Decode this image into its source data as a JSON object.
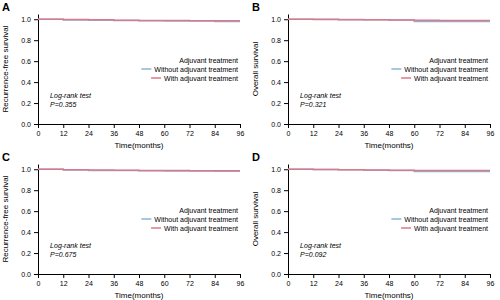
{
  "chart_data": [
    {
      "type": "step",
      "title": "A",
      "x_label": "Time(months)",
      "y_label": "Recurrence-free survival",
      "annotations": [
        "Log-rank test",
        "P=0.355"
      ],
      "legend": "right",
      "legend_title": "Adjuvant treatment",
      "grid": false,
      "x": [
        0,
        8,
        12,
        24,
        36,
        48,
        60,
        72,
        84,
        96
      ],
      "series": [
        {
          "name": "Without adjuvant treatment",
          "color": "#8ab4d4",
          "values": [
            1.0,
            1.0,
            0.993,
            0.991,
            0.988,
            0.986,
            0.984,
            0.982,
            0.979,
            0.978
          ]
        },
        {
          "name": "With adjuvant treatment",
          "color": "#d97a8a",
          "values": [
            1.0,
            1.0,
            0.997,
            0.994,
            0.991,
            0.989,
            0.987,
            0.986,
            0.985,
            0.984
          ]
        }
      ],
      "xlim": [
        0,
        96
      ],
      "xticks": [
        0,
        12,
        24,
        36,
        48,
        60,
        72,
        84,
        96
      ],
      "ylim": [
        0.0,
        1.05
      ],
      "yticks": [
        {
          "value": 0.0,
          "label": "0.0"
        },
        0.2,
        0.4,
        0.6,
        0.8,
        {
          "value": 1.0,
          "label": "1.0"
        }
      ]
    },
    {
      "type": "step",
      "title": "B",
      "x_label": "Time(months)",
      "y_label": "Overall survival",
      "annotations": [
        "Log-rank test",
        "P=0.321"
      ],
      "legend": "right",
      "legend_title": "Adjuvant treatment",
      "grid": false,
      "x": [
        0,
        8,
        12,
        24,
        36,
        48,
        60,
        72,
        84,
        96
      ],
      "series": [
        {
          "name": "Without adjuvant treatment",
          "color": "#8ab4d4",
          "values": [
            1.0,
            1.0,
            1.0,
            0.998,
            0.995,
            0.993,
            0.979,
            0.979,
            0.979,
            0.979
          ]
        },
        {
          "name": "With adjuvant treatment",
          "color": "#d97a8a",
          "values": [
            1.0,
            1.0,
            0.998,
            0.996,
            0.994,
            0.992,
            0.99,
            0.989,
            0.988,
            0.988
          ]
        }
      ],
      "xlim": [
        0,
        96
      ],
      "xticks": [
        0,
        12,
        24,
        36,
        48,
        60,
        72,
        84,
        96
      ],
      "ylim": [
        0.0,
        1.05
      ],
      "yticks": [
        {
          "value": 0.0,
          "label": "0.0"
        },
        0.2,
        0.4,
        0.6,
        0.8,
        {
          "value": 1.0,
          "label": "1.0"
        }
      ]
    },
    {
      "type": "step",
      "title": "C",
      "x_label": "Time(months)",
      "y_label": "Recurrence-free survival",
      "annotations": [
        "Log-rank test",
        "P=0.675"
      ],
      "legend": "right",
      "legend_title": "Adjuvant treatment",
      "grid": false,
      "x": [
        0,
        8,
        12,
        24,
        36,
        48,
        60,
        72,
        84,
        96
      ],
      "series": [
        {
          "name": "Without adjuvant treatment",
          "color": "#8ab4d4",
          "values": [
            1.0,
            1.0,
            0.992,
            0.989,
            0.987,
            0.985,
            0.984,
            0.982,
            0.981,
            0.98
          ]
        },
        {
          "name": "With adjuvant treatment",
          "color": "#d97a8a",
          "values": [
            1.0,
            1.0,
            0.996,
            0.993,
            0.991,
            0.989,
            0.988,
            0.986,
            0.986,
            0.986
          ]
        }
      ],
      "xlim": [
        0,
        96
      ],
      "xticks": [
        0,
        12,
        24,
        36,
        48,
        60,
        72,
        84,
        96
      ],
      "ylim": [
        0.0,
        1.05
      ],
      "yticks": [
        {
          "value": 0.0,
          "label": "0.0"
        },
        0.2,
        0.4,
        0.6,
        0.8,
        {
          "value": 1.0,
          "label": "1.0"
        }
      ]
    },
    {
      "type": "step",
      "title": "D",
      "x_label": "Time(months)",
      "y_label": "Overall survival",
      "annotations": [
        "Log-rank test",
        "P=0.092"
      ],
      "legend": "right",
      "legend_title": "Adjuvant treatment",
      "grid": false,
      "x": [
        0,
        8,
        12,
        24,
        36,
        48,
        60,
        72,
        84,
        96
      ],
      "series": [
        {
          "name": "Without adjuvant treatment",
          "color": "#8ab4d4",
          "values": [
            1.0,
            1.0,
            0.998,
            0.995,
            0.99,
            0.988,
            0.978,
            0.978,
            0.978,
            0.978
          ]
        },
        {
          "name": "With adjuvant treatment",
          "color": "#d97a8a",
          "values": [
            1.0,
            1.0,
            0.997,
            0.994,
            0.992,
            0.99,
            0.989,
            0.988,
            0.988,
            0.988
          ]
        }
      ],
      "xlim": [
        0,
        96
      ],
      "xticks": [
        0,
        12,
        24,
        36,
        48,
        60,
        72,
        84,
        96
      ],
      "ylim": [
        0.0,
        1.05
      ],
      "yticks": [
        {
          "value": 0.0,
          "label": "0.0"
        },
        0.2,
        0.4,
        0.6,
        0.8,
        {
          "value": 1.0,
          "label": "1.0"
        }
      ]
    }
  ]
}
